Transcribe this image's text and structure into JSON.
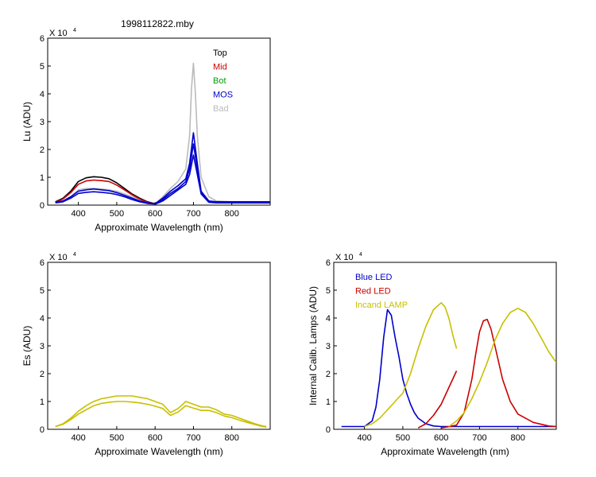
{
  "figure_title": "1998112822.mby",
  "chart_data": [
    {
      "type": "line",
      "id": "lu",
      "title": "",
      "xlabel": "Approximate Wavelength (nm)",
      "ylabel": "Lu (ADU)",
      "y_multiplier": "X 10",
      "y_exponent": "4",
      "xlim": [
        320,
        900
      ],
      "ylim": [
        0,
        6
      ],
      "xticks": [
        400,
        500,
        600,
        700,
        800
      ],
      "yticks": [
        0,
        1,
        2,
        3,
        4,
        5,
        6
      ],
      "legend_position": "top-right",
      "legend": [
        {
          "label": "Top",
          "color": "#000000"
        },
        {
          "label": "Mid",
          "color": "#cc0000"
        },
        {
          "label": "Bot",
          "color": "#00a000"
        },
        {
          "label": "MOS",
          "color": "#0000cc"
        },
        {
          "label": "Bad",
          "color": "#bbbbbb"
        }
      ],
      "series": [
        {
          "color": "#bbbbbb",
          "x": [
            340,
            360,
            380,
            400,
            420,
            440,
            460,
            480,
            500,
            520,
            540,
            560,
            580,
            600,
            620,
            640,
            660,
            680,
            690,
            695,
            700,
            705,
            710,
            720,
            740,
            760,
            800,
            900
          ],
          "y": [
            0.1,
            0.15,
            0.3,
            0.55,
            0.6,
            0.6,
            0.58,
            0.55,
            0.5,
            0.4,
            0.3,
            0.2,
            0.1,
            0.05,
            0.3,
            0.6,
            0.85,
            1.3,
            2.5,
            4.2,
            5.1,
            4.0,
            2.5,
            1.0,
            0.3,
            0.15,
            0.12,
            0.12
          ]
        },
        {
          "color": "#000000",
          "x": [
            340,
            360,
            380,
            400,
            420,
            440,
            460,
            480,
            500,
            520,
            540,
            560,
            580,
            600
          ],
          "y": [
            0.12,
            0.25,
            0.5,
            0.85,
            0.98,
            1.02,
            1.0,
            0.95,
            0.8,
            0.6,
            0.4,
            0.25,
            0.12,
            0.05
          ]
        },
        {
          "color": "#cc0000",
          "x": [
            340,
            360,
            380,
            400,
            420,
            440,
            460,
            480,
            500,
            520,
            540,
            560,
            580,
            600
          ],
          "y": [
            0.1,
            0.22,
            0.45,
            0.75,
            0.87,
            0.9,
            0.88,
            0.85,
            0.72,
            0.55,
            0.37,
            0.22,
            0.1,
            0.05
          ]
        },
        {
          "color": "#0000cc",
          "x": [
            340,
            360,
            380,
            400,
            420,
            440,
            460,
            480,
            500,
            520,
            540,
            560,
            580,
            600,
            620,
            640,
            660,
            680,
            690,
            700,
            710,
            720,
            740,
            760,
            800,
            900
          ],
          "y": [
            0.1,
            0.15,
            0.3,
            0.5,
            0.55,
            0.58,
            0.55,
            0.52,
            0.45,
            0.35,
            0.25,
            0.15,
            0.08,
            0.05,
            0.25,
            0.5,
            0.7,
            0.95,
            1.5,
            2.6,
            1.5,
            0.5,
            0.15,
            0.12,
            0.12,
            0.12
          ]
        },
        {
          "color": "#0000cc",
          "x": [
            340,
            360,
            380,
            400,
            420,
            440,
            460,
            480,
            500,
            520,
            540,
            560,
            580,
            600,
            620,
            640,
            660,
            680,
            690,
            700,
            710,
            720,
            740,
            760,
            800,
            900
          ],
          "y": [
            0.08,
            0.12,
            0.25,
            0.42,
            0.46,
            0.48,
            0.46,
            0.43,
            0.38,
            0.3,
            0.2,
            0.12,
            0.06,
            0.04,
            0.2,
            0.42,
            0.6,
            0.85,
            1.3,
            2.2,
            1.3,
            0.45,
            0.12,
            0.1,
            0.1,
            0.1
          ]
        },
        {
          "color": "#0000cc",
          "x": [
            600,
            620,
            640,
            660,
            680,
            690,
            700,
            710,
            720,
            740,
            760,
            800,
            900
          ],
          "y": [
            0.03,
            0.15,
            0.35,
            0.55,
            0.75,
            1.1,
            1.8,
            1.1,
            0.4,
            0.1,
            0.08,
            0.08,
            0.08
          ]
        }
      ]
    },
    {
      "type": "line",
      "id": "es",
      "title": "",
      "xlabel": "Approximate Wavelength (nm)",
      "ylabel": "Es (ADU)",
      "y_multiplier": "X 10",
      "y_exponent": "4",
      "xlim": [
        320,
        900
      ],
      "ylim": [
        0,
        6
      ],
      "xticks": [
        400,
        500,
        600,
        700,
        800
      ],
      "yticks": [
        0,
        1,
        2,
        3,
        4,
        5,
        6
      ],
      "series": [
        {
          "color": "#c8c000",
          "x": [
            340,
            360,
            380,
            400,
            420,
            440,
            460,
            480,
            500,
            520,
            540,
            560,
            580,
            600,
            620,
            640,
            660,
            680,
            700,
            720,
            740,
            760,
            780,
            800,
            820,
            840,
            860,
            880,
            890
          ],
          "y": [
            0.1,
            0.2,
            0.4,
            0.65,
            0.85,
            1.0,
            1.1,
            1.15,
            1.2,
            1.2,
            1.2,
            1.15,
            1.1,
            1.0,
            0.9,
            0.6,
            0.75,
            1.0,
            0.9,
            0.8,
            0.8,
            0.7,
            0.55,
            0.5,
            0.4,
            0.3,
            0.2,
            0.12,
            0.1
          ]
        },
        {
          "color": "#c8c000",
          "x": [
            340,
            360,
            380,
            400,
            420,
            440,
            460,
            480,
            500,
            520,
            540,
            560,
            580,
            600,
            620,
            640,
            660,
            680,
            700,
            720,
            740,
            760,
            780,
            800,
            820,
            840,
            860,
            880,
            890
          ],
          "y": [
            0.1,
            0.18,
            0.35,
            0.55,
            0.7,
            0.85,
            0.93,
            0.97,
            1.0,
            1.0,
            0.98,
            0.95,
            0.9,
            0.83,
            0.75,
            0.5,
            0.62,
            0.85,
            0.76,
            0.68,
            0.68,
            0.6,
            0.48,
            0.42,
            0.33,
            0.25,
            0.17,
            0.1,
            0.08
          ]
        }
      ]
    },
    {
      "type": "line",
      "id": "cal",
      "title": "",
      "xlabel": "Approximate Wavelength (nm)",
      "ylabel": "Internal Calib. Lamps (ADU)",
      "y_multiplier": "X 10",
      "y_exponent": "4",
      "xlim": [
        320,
        900
      ],
      "ylim": [
        0,
        6
      ],
      "xticks": [
        400,
        500,
        600,
        700,
        800
      ],
      "yticks": [
        0,
        1,
        2,
        3,
        4,
        5,
        6
      ],
      "legend_position": "top-left",
      "legend": [
        {
          "label": "Blue LED",
          "color": "#0000cc"
        },
        {
          "label": "Red LED",
          "color": "#cc0000"
        },
        {
          "label": "Incand LAMP",
          "color": "#c8c000"
        }
      ],
      "series": [
        {
          "color": "#0000cc",
          "x": [
            340,
            400,
            420,
            430,
            440,
            450,
            460,
            470,
            480,
            490,
            500,
            510,
            520,
            530,
            540,
            560,
            580,
            600,
            640,
            700,
            800,
            900
          ],
          "y": [
            0.1,
            0.1,
            0.3,
            0.8,
            1.8,
            3.3,
            4.3,
            4.1,
            3.3,
            2.6,
            1.8,
            1.3,
            0.9,
            0.6,
            0.4,
            0.2,
            0.12,
            0.1,
            0.1,
            0.1,
            0.1,
            0.1
          ]
        },
        {
          "color": "#c8c000",
          "x": [
            400,
            420,
            440,
            460,
            480,
            500,
            520,
            540,
            560,
            580,
            600,
            610,
            620,
            630,
            640
          ],
          "y": [
            0.1,
            0.2,
            0.4,
            0.7,
            1.0,
            1.3,
            2.0,
            2.9,
            3.7,
            4.3,
            4.55,
            4.4,
            4.0,
            3.4,
            2.9
          ]
        },
        {
          "color": "#cc0000",
          "x": [
            540,
            560,
            580,
            600,
            620,
            630,
            640
          ],
          "y": [
            0.05,
            0.2,
            0.5,
            0.9,
            1.5,
            1.8,
            2.1
          ]
        },
        {
          "color": "#cc0000",
          "x": [
            600,
            640,
            660,
            680,
            690,
            700,
            710,
            720,
            730,
            740,
            760,
            780,
            800,
            840,
            880,
            900
          ],
          "y": [
            0.05,
            0.15,
            0.6,
            1.8,
            2.7,
            3.5,
            3.9,
            3.95,
            3.6,
            3.0,
            1.8,
            1.0,
            0.55,
            0.25,
            0.12,
            0.1
          ]
        },
        {
          "color": "#c8c000",
          "x": [
            620,
            640,
            660,
            680,
            700,
            720,
            740,
            760,
            780,
            800,
            820,
            840,
            860,
            880,
            900
          ],
          "y": [
            0.1,
            0.3,
            0.6,
            1.1,
            1.7,
            2.4,
            3.2,
            3.8,
            4.2,
            4.35,
            4.2,
            3.8,
            3.3,
            2.8,
            2.4
          ]
        }
      ]
    }
  ]
}
